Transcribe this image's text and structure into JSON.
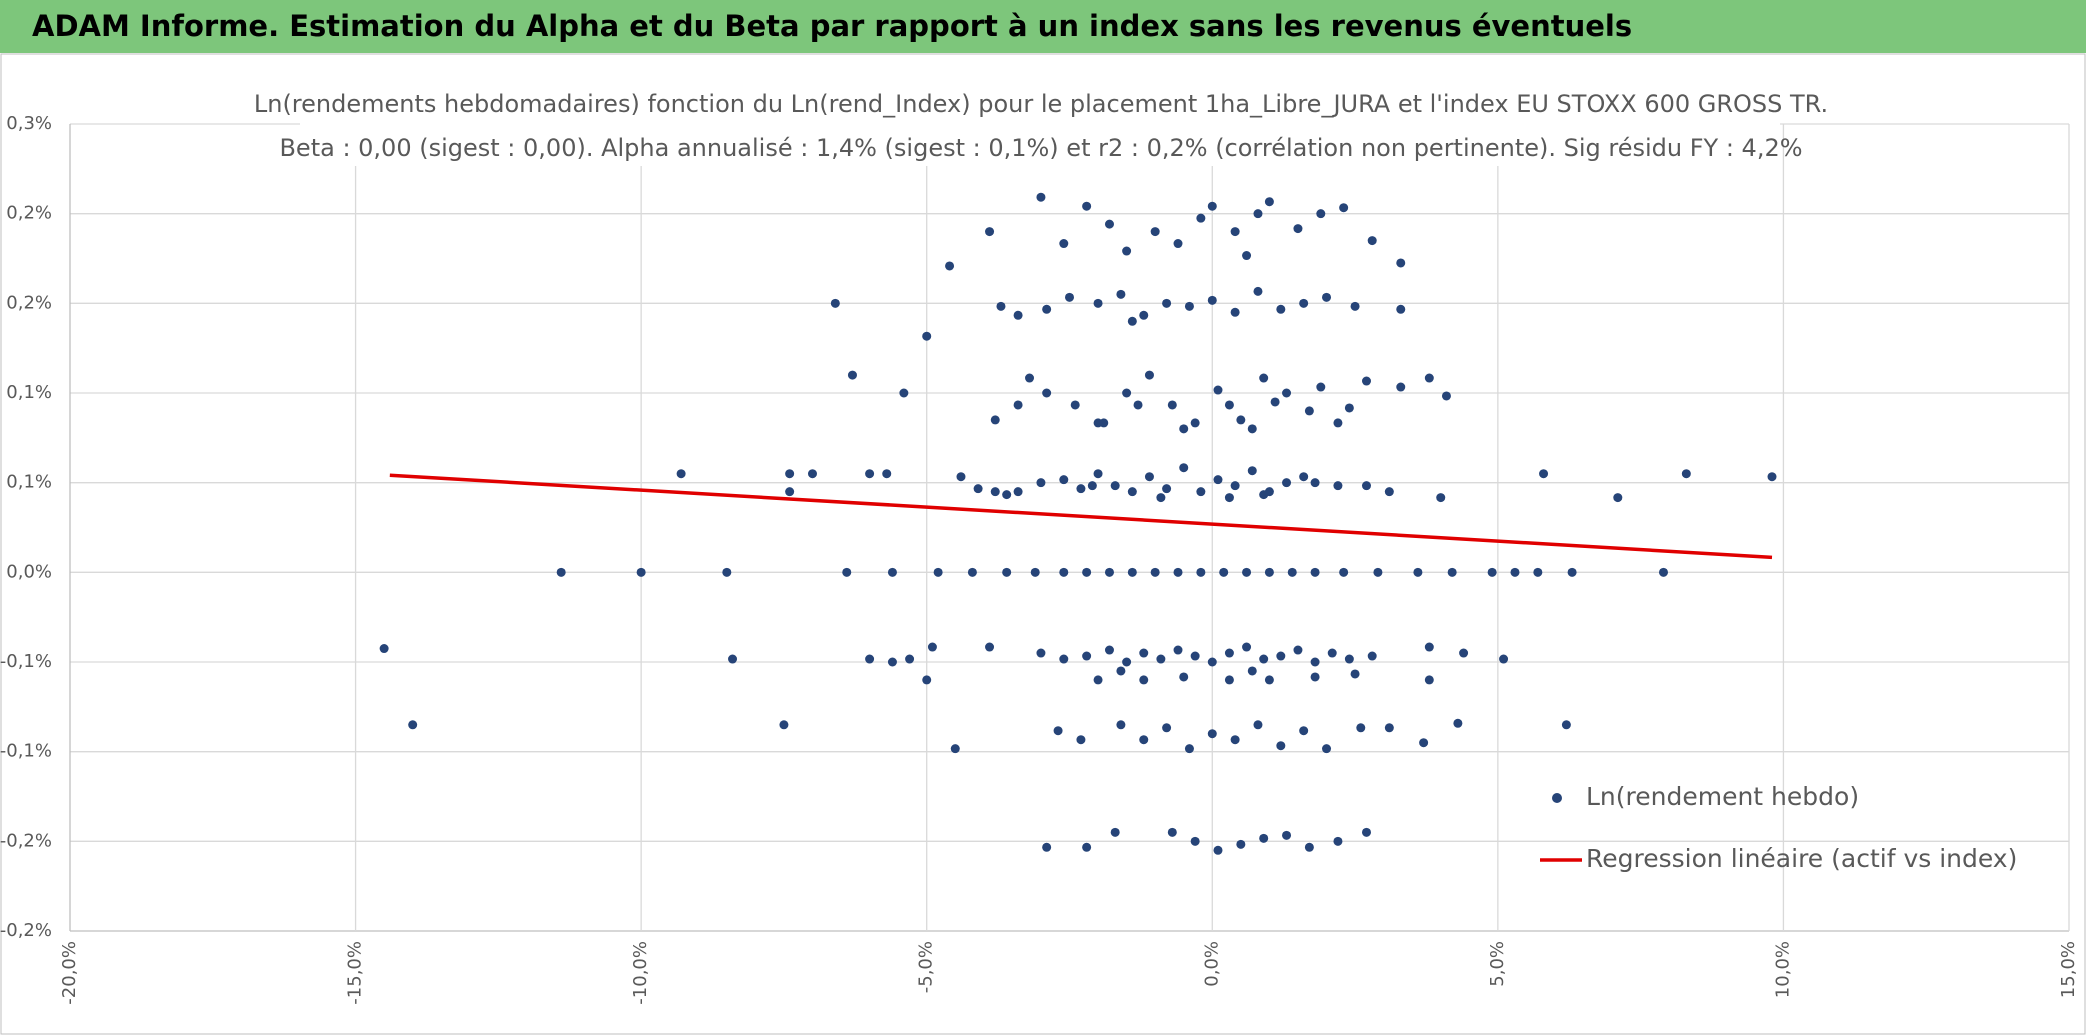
{
  "header": {
    "title": "ADAM Informe. Estimation du Alpha et du Beta par rapport à un index sans les revenus éventuels"
  },
  "chart_data": {
    "type": "scatter",
    "title": "Ln(rendements hebdomadaires) fonction du Ln(rend_Index) pour le placement 1ha_Libre_JURA et l'index EU STOXX 600 GROSS TR.",
    "subtitle": "Beta : 0,00 (sigest : 0,00). Alpha annualisé : 1,4% (sigest : 0,1%) et r2 : 0,2% (corrélation non pertinente). Sig résidu FY : 4,2%",
    "xlim": [
      -20,
      15
    ],
    "xticks": [
      {
        "value": -20,
        "label": "-20,0%"
      },
      {
        "value": -15,
        "label": "-15,0%"
      },
      {
        "value": -10,
        "label": "-10,0%"
      },
      {
        "value": -5,
        "label": "-5,0%"
      },
      {
        "value": 0,
        "label": "0,0%"
      },
      {
        "value": 5,
        "label": "5,0%"
      },
      {
        "value": 10,
        "label": "10,0%"
      },
      {
        "value": 15,
        "label": "15,0%"
      }
    ],
    "ylim": [
      -0.24,
      0.3
    ],
    "yticks": [
      {
        "value": -0.24,
        "label": "-0,2%"
      },
      {
        "value": -0.18,
        "label": "-0,2%"
      },
      {
        "value": -0.12,
        "label": "-0,1%"
      },
      {
        "value": -0.06,
        "label": "-0,1%"
      },
      {
        "value": 0,
        "label": "0,0%"
      },
      {
        "value": 0.06,
        "label": "0,1%"
      },
      {
        "value": 0.12,
        "label": "0,1%"
      },
      {
        "value": 0.18,
        "label": "0,2%"
      },
      {
        "value": 0.24,
        "label": "0,2%"
      },
      {
        "value": 0.3,
        "label": "0,3%"
      }
    ],
    "grid": true,
    "legend": "right",
    "series": [
      {
        "name": "Ln(rendement hebdo)",
        "type": "scatter",
        "color": "#264478",
        "x": [
          -11.4,
          -10.0,
          -8.5,
          -6.4,
          -5.6,
          -4.8,
          -4.2,
          -3.6,
          -3.1,
          -2.6,
          -2.2,
          -1.8,
          -1.4,
          -1.0,
          -0.6,
          -0.2,
          0.2,
          0.6,
          1.0,
          1.4,
          1.8,
          2.3,
          2.9,
          3.6,
          4.2,
          4.9,
          5.3,
          5.7,
          6.3,
          7.9,
          -9.3,
          -7.4,
          -7.0,
          -6.0,
          -5.7,
          -4.4,
          -4.1,
          -3.8,
          -3.4,
          -3.0,
          -2.6,
          -2.3,
          -2.0,
          -1.7,
          -1.4,
          -1.1,
          -0.8,
          -0.5,
          -0.2,
          0.1,
          0.4,
          0.7,
          1.0,
          1.3,
          1.6,
          2.2,
          3.1,
          5.8,
          8.3,
          9.8,
          -7.4,
          -3.6,
          -2.1,
          -0.9,
          0.3,
          0.9,
          1.8,
          2.7,
          4.0,
          7.1,
          -6.3,
          -5.4,
          -3.8,
          -3.2,
          -2.9,
          -2.4,
          -1.9,
          -1.5,
          -1.1,
          -0.7,
          -0.3,
          0.1,
          0.5,
          0.9,
          1.3,
          1.7,
          2.2,
          2.7,
          3.3,
          4.1,
          -3.4,
          -2.0,
          -1.3,
          -0.5,
          0.3,
          0.7,
          1.1,
          1.9,
          2.4,
          3.8,
          -6.6,
          -5.0,
          -3.7,
          -3.4,
          -2.9,
          -2.5,
          -2.0,
          -1.6,
          -1.2,
          -0.8,
          -0.4,
          0.0,
          0.4,
          0.8,
          1.2,
          1.6,
          2.0,
          2.5,
          3.3,
          -1.4,
          -4.6,
          -3.9,
          -3.0,
          -2.6,
          -2.2,
          -1.8,
          -1.5,
          -1.0,
          -0.6,
          -0.2,
          0.0,
          0.4,
          0.8,
          1.0,
          1.5,
          1.9,
          2.3,
          2.8,
          3.3,
          0.6,
          -14.5,
          -8.4,
          -6.0,
          -5.6,
          -5.3,
          -5.0,
          -4.9,
          -3.9,
          -3.0,
          -2.6,
          -2.2,
          -1.8,
          -1.5,
          -1.2,
          -0.9,
          -0.6,
          -0.3,
          0.0,
          0.3,
          0.6,
          0.9,
          1.2,
          1.5,
          1.8,
          2.1,
          2.4,
          2.8,
          3.8,
          4.4,
          5.1,
          -2.0,
          -1.2,
          -0.5,
          0.3,
          1.0,
          1.8,
          2.5,
          3.8,
          -1.6,
          0.7,
          -14.0,
          -7.5,
          -4.5,
          -2.7,
          -2.3,
          -1.6,
          -1.2,
          -0.8,
          -0.4,
          0.0,
          0.4,
          0.8,
          1.2,
          1.6,
          2.0,
          2.6,
          3.1,
          3.7,
          4.3,
          6.2,
          -2.9,
          -2.2,
          -1.7,
          -0.7,
          -0.3,
          0.1,
          0.5,
          0.9,
          1.3,
          1.7,
          2.2,
          2.7
        ],
        "values": [
          0,
          0,
          0,
          0,
          0,
          0,
          0,
          0,
          0,
          0,
          0,
          0,
          0,
          0,
          0,
          0,
          0,
          0,
          0,
          0,
          0,
          0,
          0,
          0,
          0,
          0,
          0,
          0,
          0,
          0,
          0.066,
          0.066,
          0.066,
          0.066,
          0.066,
          0.064,
          0.056,
          0.054,
          0.054,
          0.06,
          0.062,
          0.056,
          0.066,
          0.058,
          0.054,
          0.064,
          0.056,
          0.07,
          0.054,
          0.062,
          0.058,
          0.068,
          0.054,
          0.06,
          0.064,
          0.058,
          0.054,
          0.066,
          0.066,
          0.064,
          0.054,
          0.052,
          0.058,
          0.05,
          0.05,
          0.052,
          0.06,
          0.058,
          0.05,
          0.05,
          0.132,
          0.12,
          0.102,
          0.13,
          0.12,
          0.112,
          0.1,
          0.12,
          0.132,
          0.112,
          0.1,
          0.122,
          0.102,
          0.13,
          0.12,
          0.108,
          0.1,
          0.128,
          0.124,
          0.118,
          0.112,
          0.1,
          0.112,
          0.096,
          0.112,
          0.096,
          0.114,
          0.124,
          0.11,
          0.13,
          0.18,
          0.158,
          0.178,
          0.172,
          0.176,
          0.184,
          0.18,
          0.186,
          0.172,
          0.18,
          0.178,
          0.182,
          0.174,
          0.188,
          0.176,
          0.18,
          0.184,
          0.178,
          0.176,
          0.168,
          0.205,
          0.228,
          0.251,
          0.22,
          0.245,
          0.233,
          0.215,
          0.228,
          0.22,
          0.237,
          0.245,
          0.228,
          0.24,
          0.248,
          0.23,
          0.24,
          0.244,
          0.222,
          0.207,
          0.212,
          -0.051,
          -0.058,
          -0.058,
          -0.06,
          -0.058,
          -0.072,
          -0.05,
          -0.05,
          -0.054,
          -0.058,
          -0.056,
          -0.052,
          -0.06,
          -0.054,
          -0.058,
          -0.052,
          -0.056,
          -0.06,
          -0.054,
          -0.05,
          -0.058,
          -0.056,
          -0.052,
          -0.06,
          -0.054,
          -0.058,
          -0.056,
          -0.05,
          -0.054,
          -0.058,
          -0.072,
          -0.072,
          -0.07,
          -0.072,
          -0.072,
          -0.07,
          -0.068,
          -0.072,
          -0.066,
          -0.066,
          -0.102,
          -0.102,
          -0.118,
          -0.106,
          -0.112,
          -0.102,
          -0.112,
          -0.104,
          -0.118,
          -0.108,
          -0.112,
          -0.102,
          -0.116,
          -0.106,
          -0.118,
          -0.104,
          -0.104,
          -0.114,
          -0.101,
          -0.102,
          -0.184,
          -0.184,
          -0.174,
          -0.174,
          -0.18,
          -0.186,
          -0.182,
          -0.178,
          -0.176,
          -0.184,
          -0.18,
          -0.174
        ]
      },
      {
        "name": "Regression linéaire (actif vs index)",
        "type": "line",
        "color": "#e00000",
        "x": [
          -14.4,
          9.8
        ],
        "values": [
          0.065,
          0.01
        ]
      }
    ]
  }
}
